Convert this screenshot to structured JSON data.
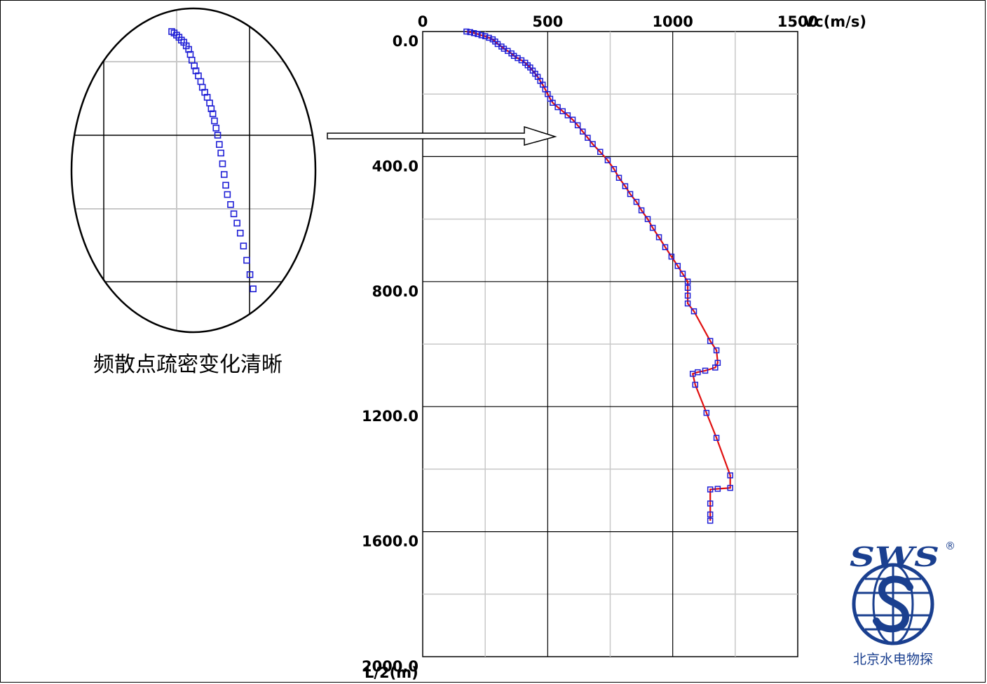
{
  "chart_data": {
    "type": "line",
    "x_axis_label": "Vc(m/s)",
    "y_axis_label": "L/2(m)",
    "x_ticks": [
      "0",
      "500",
      "1000",
      "1500"
    ],
    "y_ticks": [
      "0.0",
      "400.0",
      "800.0",
      "1200.0",
      "1600.0",
      "2000.0"
    ],
    "xlim": [
      0,
      1500
    ],
    "ylim": [
      0,
      2000
    ],
    "y_inverted": true,
    "x_axis_position": "top",
    "grid": true,
    "series": [
      {
        "marker": "square",
        "marker_color": "#1f1fd6",
        "line_color": "#e01010",
        "points": [
          [
            175,
            0
          ],
          [
            190,
            2
          ],
          [
            205,
            5
          ],
          [
            220,
            8
          ],
          [
            235,
            12
          ],
          [
            250,
            15
          ],
          [
            265,
            20
          ],
          [
            280,
            25
          ],
          [
            290,
            32
          ],
          [
            300,
            40
          ],
          [
            315,
            48
          ],
          [
            325,
            55
          ],
          [
            340,
            62
          ],
          [
            355,
            70
          ],
          [
            365,
            78
          ],
          [
            380,
            85
          ],
          [
            395,
            92
          ],
          [
            410,
            100
          ],
          [
            420,
            108
          ],
          [
            430,
            115
          ],
          [
            440,
            125
          ],
          [
            450,
            135
          ],
          [
            460,
            145
          ],
          [
            470,
            158
          ],
          [
            480,
            170
          ],
          [
            490,
            185
          ],
          [
            500,
            200
          ],
          [
            510,
            215
          ],
          [
            520,
            228
          ],
          [
            540,
            242
          ],
          [
            560,
            255
          ],
          [
            580,
            268
          ],
          [
            600,
            282
          ],
          [
            620,
            300
          ],
          [
            640,
            320
          ],
          [
            660,
            340
          ],
          [
            680,
            360
          ],
          [
            710,
            385
          ],
          [
            740,
            412
          ],
          [
            765,
            440
          ],
          [
            785,
            468
          ],
          [
            810,
            495
          ],
          [
            830,
            520
          ],
          [
            855,
            545
          ],
          [
            875,
            572
          ],
          [
            900,
            600
          ],
          [
            920,
            628
          ],
          [
            945,
            658
          ],
          [
            970,
            690
          ],
          [
            995,
            720
          ],
          [
            1020,
            750
          ],
          [
            1040,
            775
          ],
          [
            1060,
            800
          ],
          [
            1060,
            820
          ],
          [
            1060,
            845
          ],
          [
            1060,
            870
          ],
          [
            1085,
            895
          ],
          [
            1150,
            990
          ],
          [
            1175,
            1020
          ],
          [
            1180,
            1060
          ],
          [
            1170,
            1075
          ],
          [
            1130,
            1085
          ],
          [
            1100,
            1090
          ],
          [
            1080,
            1095
          ],
          [
            1090,
            1130
          ],
          [
            1135,
            1220
          ],
          [
            1175,
            1300
          ],
          [
            1230,
            1420
          ],
          [
            1230,
            1460
          ],
          [
            1180,
            1463
          ],
          [
            1150,
            1465
          ],
          [
            1150,
            1510
          ],
          [
            1150,
            1545
          ],
          [
            1150,
            1565
          ]
        ]
      }
    ],
    "zoom_inset": {
      "points": [
        [
          175,
          0
        ],
        [
          190,
          2
        ],
        [
          205,
          5
        ],
        [
          220,
          8
        ],
        [
          235,
          12
        ],
        [
          250,
          15
        ],
        [
          265,
          20
        ],
        [
          280,
          25
        ],
        [
          290,
          32
        ],
        [
          300,
          40
        ],
        [
          315,
          48
        ],
        [
          325,
          55
        ],
        [
          340,
          62
        ],
        [
          355,
          70
        ],
        [
          365,
          78
        ],
        [
          380,
          85
        ],
        [
          395,
          92
        ],
        [
          410,
          100
        ],
        [
          420,
          108
        ],
        [
          430,
          115
        ],
        [
          440,
          125
        ],
        [
          450,
          135
        ],
        [
          460,
          145
        ],
        [
          470,
          158
        ],
        [
          480,
          170
        ],
        [
          490,
          185
        ],
        [
          500,
          200
        ],
        [
          510,
          215
        ],
        [
          520,
          228
        ],
        [
          540,
          242
        ],
        [
          560,
          255
        ],
        [
          580,
          268
        ],
        [
          600,
          282
        ],
        [
          620,
          300
        ],
        [
          640,
          320
        ],
        [
          660,
          340
        ],
        [
          680,
          360
        ]
      ]
    },
    "annotation": "频散点疏密变化清晰"
  },
  "brand": {
    "logo_text": "SWS",
    "registered_mark": "®",
    "company_name": "北京水电物探",
    "color": "#1a3f8f"
  }
}
